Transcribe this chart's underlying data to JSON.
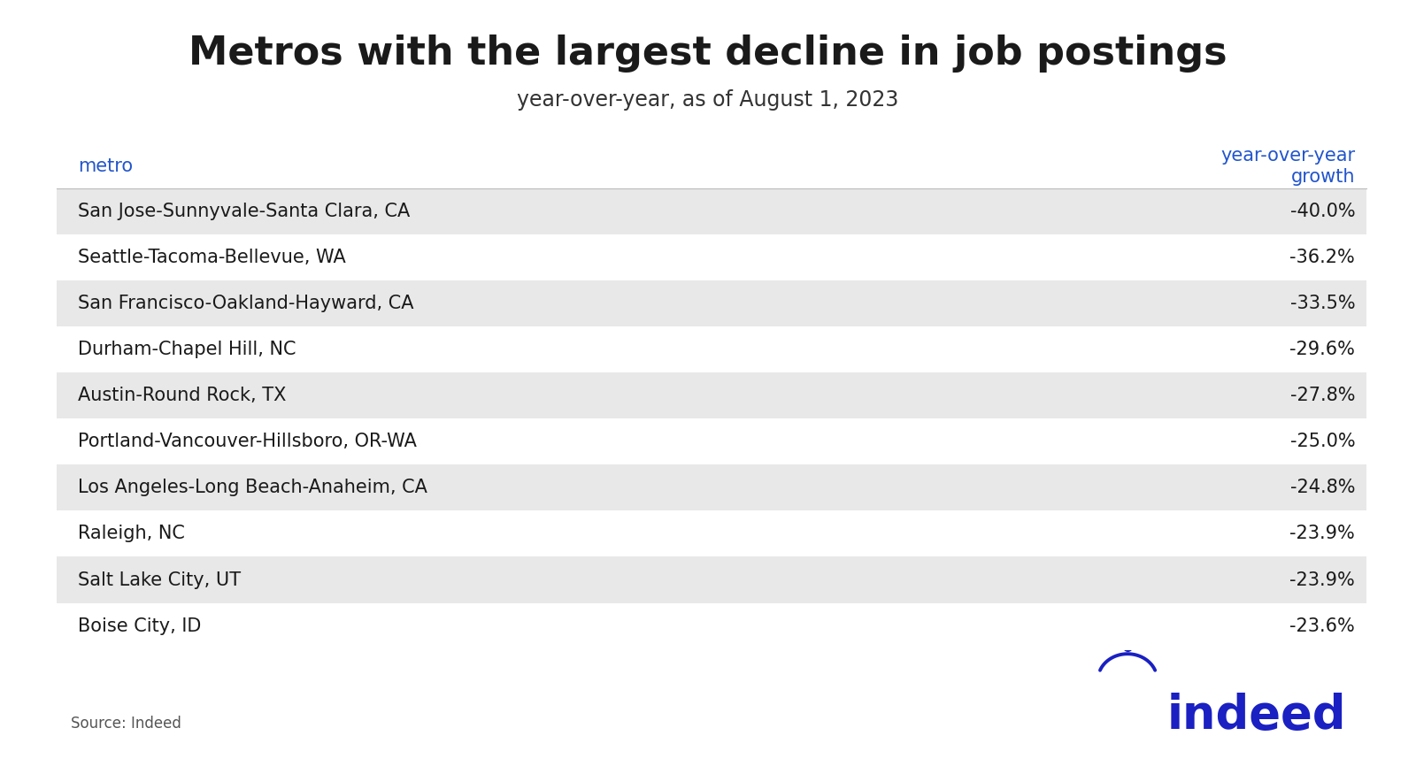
{
  "title": "Metros with the largest decline in job postings",
  "subtitle": "year-over-year, as of August 1, 2023",
  "col_header_left": "metro",
  "col_header_right": "year-over-year\ngrowth",
  "source": "Source: Indeed",
  "metros": [
    "San Jose-Sunnyvale-Santa Clara, CA",
    "Seattle-Tacoma-Bellevue, WA",
    "San Francisco-Oakland-Hayward, CA",
    "Durham-Chapel Hill, NC",
    "Austin-Round Rock, TX",
    "Portland-Vancouver-Hillsboro, OR-WA",
    "Los Angeles-Long Beach-Anaheim, CA",
    "Raleigh, NC",
    "Salt Lake City, UT",
    "Boise City, ID"
  ],
  "values": [
    "-40.0%",
    "-36.2%",
    "-33.5%",
    "-29.6%",
    "-27.8%",
    "-25.0%",
    "-24.8%",
    "-23.9%",
    "-23.9%",
    "-23.6%"
  ],
  "shaded_rows": [
    0,
    2,
    4,
    6,
    8
  ],
  "row_bg_shaded": "#e8e8e8",
  "row_bg_white": "#ffffff",
  "header_color": "#2255cc",
  "title_color": "#1a1a1a",
  "subtitle_color": "#333333",
  "text_color": "#1a1a1a",
  "source_color": "#555555",
  "indeed_color": "#1a20c2",
  "background_color": "#ffffff",
  "title_fontsize": 32,
  "subtitle_fontsize": 17,
  "header_fontsize": 15,
  "row_fontsize": 15,
  "source_fontsize": 12
}
